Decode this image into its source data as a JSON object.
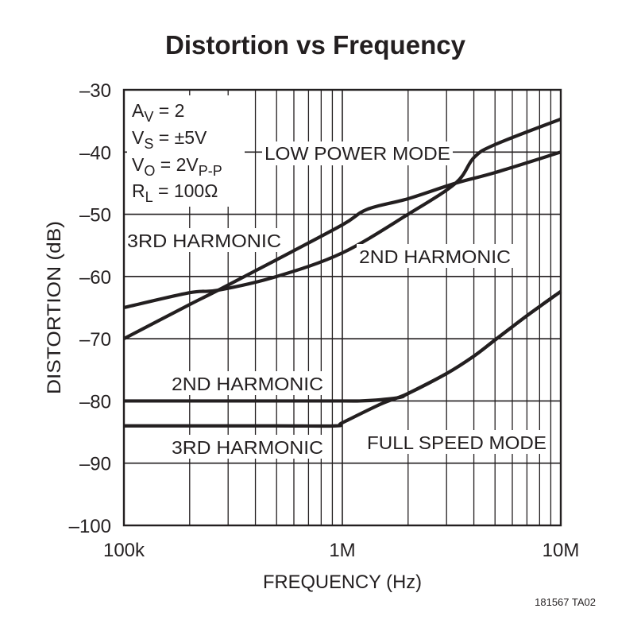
{
  "chart_data": {
    "type": "line",
    "title": "Distortion vs Frequency",
    "xlabel": "FREQUENCY (Hz)",
    "ylabel": "DISTORTION (dB)",
    "x_scale": "log",
    "xlim": [
      100000,
      10000000
    ],
    "ylim": [
      -100,
      -30
    ],
    "grid": true,
    "x_ticks": [
      {
        "value": 100000,
        "label": "100k"
      },
      {
        "value": 1000000,
        "label": "1M"
      },
      {
        "value": 10000000,
        "label": "10M"
      }
    ],
    "y_ticks": [
      {
        "value": -30,
        "label": "–30"
      },
      {
        "value": -40,
        "label": "–40"
      },
      {
        "value": -50,
        "label": "–50"
      },
      {
        "value": -60,
        "label": "–60"
      },
      {
        "value": -70,
        "label": "–70"
      },
      {
        "value": -80,
        "label": "–80"
      },
      {
        "value": -90,
        "label": "–90"
      },
      {
        "value": -100,
        "label": "–100"
      }
    ],
    "line_color": "#231f20",
    "grid_color": "#231f20",
    "conditions": [
      [
        {
          "t": "A"
        },
        {
          "t": "V",
          "sub": true
        },
        {
          "t": " = 2"
        }
      ],
      [
        {
          "t": "V"
        },
        {
          "t": "S",
          "sub": true
        },
        {
          "t": " = ±5V"
        }
      ],
      [
        {
          "t": "V"
        },
        {
          "t": "O",
          "sub": true
        },
        {
          "t": " = 2V"
        },
        {
          "t": "P-P",
          "sub": true
        }
      ],
      [
        {
          "t": "R"
        },
        {
          "t": "L",
          "sub": true
        },
        {
          "t": " = 100Ω"
        }
      ]
    ],
    "groups": [
      {
        "label": "LOW POWER MODE"
      },
      {
        "label": "FULL SPEED MODE"
      }
    ],
    "series": [
      {
        "name": "3RD HARMONIC",
        "mode": "LOW POWER MODE",
        "x": [
          100000,
          200000,
          270000,
          500000,
          1000000,
          1300000,
          2000000,
          3300000,
          5000000,
          10000000
        ],
        "y": [
          -70,
          -64.5,
          -62.2,
          -57.3,
          -51.7,
          -49.2,
          -47.5,
          -45,
          -43.3,
          -40
        ]
      },
      {
        "name": "2ND HARMONIC",
        "mode": "LOW POWER MODE",
        "x": [
          100000,
          200000,
          270000,
          500000,
          1000000,
          2000000,
          3300000,
          4000000,
          5000000,
          10000000
        ],
        "y": [
          -65,
          -62.6,
          -62.2,
          -60,
          -56.2,
          -50,
          -45,
          -40.9,
          -38.8,
          -34.7
        ]
      },
      {
        "name": "2ND HARMONIC",
        "mode": "FULL SPEED MODE",
        "x": [
          100000,
          500000,
          1000000,
          1200000,
          1500000,
          1850000,
          2000000,
          3000000,
          4000000,
          5000000,
          7000000,
          10000000
        ],
        "y": [
          -80,
          -80,
          -80,
          -80,
          -79.8,
          -79.4,
          -78.8,
          -75.6,
          -72.8,
          -70.2,
          -66.3,
          -62.4
        ]
      },
      {
        "name": "3RD HARMONIC",
        "mode": "FULL SPEED MODE",
        "x": [
          100000,
          500000,
          930000,
          1000000,
          1500000,
          2000000,
          3000000,
          4000000,
          5000000,
          7000000,
          10000000
        ],
        "y": [
          -84,
          -84,
          -84,
          -83.5,
          -80.5,
          -78.8,
          -75.6,
          -72.8,
          -70.2,
          -66.3,
          -62.4
        ]
      }
    ],
    "footnote": "181567 TA02"
  }
}
